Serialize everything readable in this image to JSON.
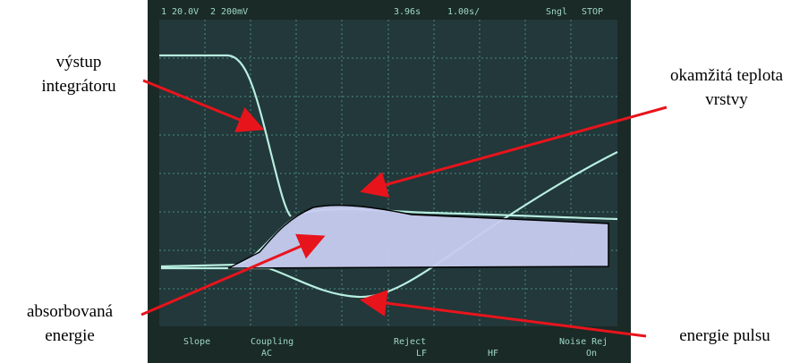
{
  "annotations": {
    "integrator_output": [
      "výstup",
      "integrátoru"
    ],
    "layer_temperature": [
      "okamžitá teplota",
      "vrstvy"
    ],
    "absorbed_energy": [
      "absorbovaná",
      "energie"
    ],
    "pulse_energy": "energie pulsu"
  },
  "scope": {
    "top": {
      "ch1": "1 20.0V",
      "ch2": "2 200mV",
      "delay": "3.96s",
      "timebase": "1.00s/",
      "mode": "Sngl",
      "state": "STOP"
    },
    "softkeys": {
      "slope": "Slope",
      "coupling": "Coupling",
      "coupling_value": "AC",
      "reject": "Reject",
      "reject_lf": "LF",
      "reject_hf": "HF",
      "noise_rej": "Noise Rej",
      "noise_value": "On"
    }
  }
}
